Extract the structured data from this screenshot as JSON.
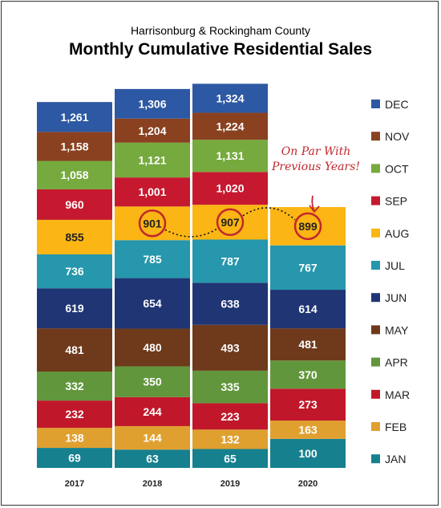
{
  "chart_data": {
    "type": "bar",
    "stacked": true,
    "subtitle": "Harrisonburg & Rockingham County",
    "title": "Monthly Cumulative Residential Sales",
    "categories": [
      "2017",
      "2018",
      "2019",
      "2020"
    ],
    "series": [
      {
        "name": "JAN",
        "color": "#16808f",
        "values": [
          69,
          63,
          65,
          100
        ]
      },
      {
        "name": "FEB",
        "color": "#e0a030",
        "values": [
          138,
          144,
          132,
          163
        ]
      },
      {
        "name": "MAR",
        "color": "#c0182a",
        "values": [
          232,
          244,
          223,
          273
        ]
      },
      {
        "name": "APR",
        "color": "#62963c",
        "values": [
          332,
          350,
          335,
          370
        ]
      },
      {
        "name": "MAY",
        "color": "#6e3a1b",
        "values": [
          481,
          480,
          493,
          481
        ]
      },
      {
        "name": "JUN",
        "color": "#1f3574",
        "values": [
          619,
          654,
          638,
          614
        ]
      },
      {
        "name": "JUL",
        "color": "#2697ac",
        "values": [
          736,
          785,
          787,
          767
        ]
      },
      {
        "name": "AUG",
        "color": "#fbb514",
        "values": [
          855,
          901,
          907,
          899
        ]
      },
      {
        "name": "SEP",
        "color": "#c6192f",
        "values": [
          960,
          1001,
          1020,
          null
        ]
      },
      {
        "name": "OCT",
        "color": "#76aa3e",
        "values": [
          1058,
          1121,
          1131,
          null
        ]
      },
      {
        "name": "NOV",
        "color": "#8a4120",
        "values": [
          1158,
          1204,
          1224,
          null
        ]
      },
      {
        "name": "DEC",
        "color": "#2d58a3",
        "values": [
          1261,
          1306,
          1324,
          null
        ]
      }
    ],
    "value_labels": {
      "2017": [
        "69",
        "138",
        "232",
        "332",
        "481",
        "619",
        "736",
        "855",
        "960",
        "1,058",
        "1,158",
        "1,261"
      ],
      "2018": [
        "63",
        "144",
        "244",
        "350",
        "480",
        "654",
        "785",
        "901",
        "1,001",
        "1,121",
        "1,204",
        "1,306"
      ],
      "2019": [
        "65",
        "132",
        "223",
        "335",
        "493",
        "638",
        "787",
        "907",
        "1,020",
        "1,131",
        "1,224",
        "1,324"
      ],
      "2020": [
        "100",
        "163",
        "273",
        "370",
        "481",
        "614",
        "767",
        "899"
      ]
    },
    "highlighted": [
      {
        "category": "2018",
        "series": "AUG"
      },
      {
        "category": "2019",
        "series": "AUG"
      },
      {
        "category": "2020",
        "series": "AUG"
      }
    ],
    "annotation": {
      "lines": [
        "On Par With",
        "Previous Years!"
      ],
      "color": "#c0282d"
    },
    "legend_position": "right",
    "grid": false
  }
}
